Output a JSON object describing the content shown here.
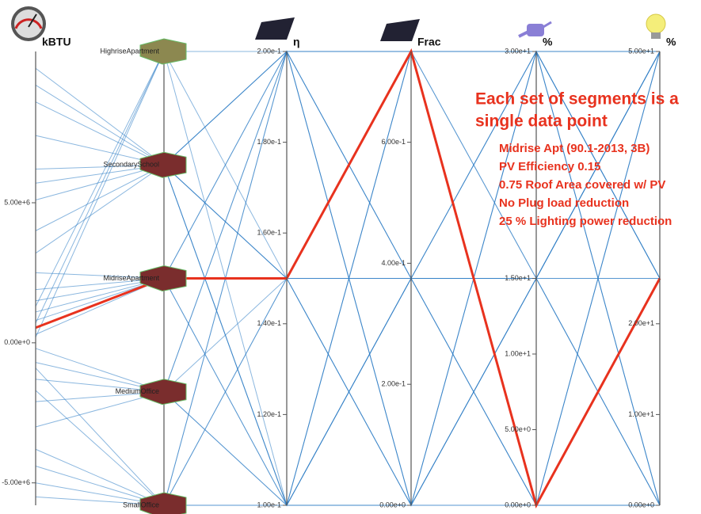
{
  "chart_data": {
    "type": "parallel",
    "line_color": "#2b7bc4",
    "highlight_color": "#e8321e",
    "highlight": 0,
    "annotation": {
      "heading": [
        "Each set of segments is a",
        "single data point"
      ],
      "details": [
        "Midrise Apt (90.1-2013, 3B)",
        "PV Efficiency 0.15",
        "0.75 Roof Area covered w/ PV",
        "No Plug load reduction",
        "25 % Lighting power reduction"
      ]
    },
    "axes": [
      {
        "label": "kBTU",
        "lim": [
          -5800000,
          10400000
        ],
        "ticks": [
          {
            "value": -5000000,
            "label": "-5.00e+6"
          },
          {
            "value": 0,
            "label": "0.00e+0"
          },
          {
            "value": 5000000,
            "label": "5.00e+6"
          }
        ]
      },
      {
        "categories": [
          "HighriseApartment",
          "SecondarySchool",
          "MidriseApartment",
          "MediumOffice",
          "SmallOffice"
        ]
      },
      {
        "label": "η",
        "lim": [
          0.1,
          0.2
        ],
        "ticks": [
          {
            "value": 0.1,
            "label": "1.00e-1"
          },
          {
            "value": 0.12,
            "label": "1.20e-1"
          },
          {
            "value": 0.14,
            "label": "1.40e-1"
          },
          {
            "value": 0.16,
            "label": "1.60e-1"
          },
          {
            "value": 0.18,
            "label": "1.80e-1"
          },
          {
            "value": 0.2,
            "label": "2.00e-1"
          }
        ]
      },
      {
        "label": "Frac",
        "lim": [
          0,
          0.75
        ],
        "ticks": [
          {
            "value": 0,
            "label": "0.00e+0"
          },
          {
            "value": 0.2,
            "label": "2.00e-1"
          },
          {
            "value": 0.4,
            "label": "4.00e-1"
          },
          {
            "value": 0.6,
            "label": "6.00e-1"
          }
        ]
      },
      {
        "label": "%",
        "lim": [
          0,
          30
        ],
        "ticks": [
          {
            "value": 0,
            "label": "0.00e+0"
          },
          {
            "value": 5,
            "label": "5.00e+0"
          },
          {
            "value": 10,
            "label": "1.00e+1"
          },
          {
            "value": 15,
            "label": "1.50e+1"
          },
          {
            "value": 30,
            "label": "3.00e+1"
          }
        ]
      },
      {
        "label": "%",
        "lim": [
          0,
          50
        ],
        "ticks": [
          {
            "value": 0,
            "label": "0.00e+0"
          },
          {
            "value": 10,
            "label": "1.00e+1"
          },
          {
            "value": 20,
            "label": "2.00e+1"
          },
          {
            "value": 50,
            "label": "5.00e+1"
          }
        ]
      }
    ],
    "records": [
      [
        540000,
        "MidriseApartment",
        0.15,
        0.75,
        0,
        25
      ],
      [
        9800000,
        "SecondarySchool",
        0.2,
        0.75,
        30,
        50
      ],
      [
        8600000,
        "SecondarySchool",
        0.15,
        0.375,
        15,
        25
      ],
      [
        7400000,
        "SecondarySchool",
        0.1,
        0,
        0,
        0
      ],
      [
        6200000,
        "SecondarySchool",
        0.2,
        0.375,
        0,
        50
      ],
      [
        5100000,
        "SecondarySchool",
        0.1,
        0.75,
        30,
        25
      ],
      [
        4000000,
        "SecondarySchool",
        0.15,
        0,
        15,
        0
      ],
      [
        3200000,
        "SecondarySchool",
        0.2,
        0,
        30,
        25
      ],
      [
        2500000,
        "MidriseApartment",
        0.2,
        0.75,
        15,
        50
      ],
      [
        1900000,
        "MidriseApartment",
        0.1,
        0.375,
        30,
        0
      ],
      [
        1500000,
        "MidriseApartment",
        0.15,
        0,
        0,
        50
      ],
      [
        1100000,
        "MidriseApartment",
        0.2,
        0,
        15,
        25
      ],
      [
        800000,
        "MidriseApartment",
        0.1,
        0.75,
        0,
        25
      ],
      [
        300000,
        "MidriseApartment",
        0.15,
        0.375,
        30,
        50
      ],
      [
        -200000,
        "MediumOffice",
        0.2,
        0.375,
        15,
        0
      ],
      [
        -700000,
        "MediumOffice",
        0.1,
        0,
        30,
        50
      ],
      [
        -1300000,
        "MediumOffice",
        0.15,
        0.75,
        0,
        25
      ],
      [
        -2100000,
        "MediumOffice",
        0.2,
        0.75,
        30,
        0
      ],
      [
        -3000000,
        "MediumOffice",
        0.1,
        0.375,
        15,
        50
      ],
      [
        -3800000,
        "SmallOffice",
        0.15,
        0.375,
        0,
        0
      ],
      [
        -4400000,
        "SmallOffice",
        0.2,
        0,
        15,
        50
      ],
      [
        -5000000,
        "SmallOffice",
        0.1,
        0.75,
        30,
        25
      ],
      [
        -5500000,
        "SmallOffice",
        0.15,
        0,
        30,
        0
      ],
      [
        1300000,
        "HighriseApartment",
        0.2,
        0.375,
        30,
        25
      ],
      [
        700000,
        "HighriseApartment",
        0.1,
        0,
        15,
        50
      ],
      [
        200000,
        "HighriseApartment",
        0.15,
        0.75,
        15,
        0
      ],
      [
        -900000,
        "SmallOffice",
        0.2,
        0.75,
        0,
        50
      ],
      [
        -1700000,
        "SmallOffice",
        0.1,
        0.375,
        0,
        25
      ],
      [
        9200000,
        "SecondarySchool",
        0.1,
        0.375,
        15,
        50
      ],
      [
        5700000,
        "SecondarySchool",
        0.15,
        0.75,
        0,
        0
      ]
    ]
  }
}
